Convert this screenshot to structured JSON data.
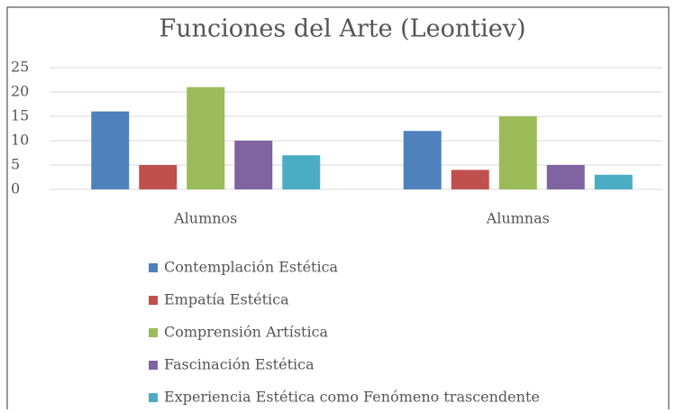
{
  "chart_data": {
    "type": "bar",
    "title": "Funciones del Arte (Leontiev)",
    "categories": [
      "Alumnos",
      "Alumnas"
    ],
    "series": [
      {
        "name": "Contemplación Estética",
        "color": "#4f81bd",
        "values": [
          16,
          12
        ]
      },
      {
        "name": "Empatía Estética",
        "color": "#c0504d",
        "values": [
          5,
          4
        ]
      },
      {
        "name": "Comprensión Artística",
        "color": "#9bbb59",
        "values": [
          21,
          15
        ]
      },
      {
        "name": "Fascinación Estética",
        "color": "#8064a2",
        "values": [
          10,
          5
        ]
      },
      {
        "name": "Experiencia Estética como Fenómeno trascendente",
        "color": "#4bacc6",
        "values": [
          7,
          3
        ]
      }
    ],
    "ylim": [
      0,
      25
    ],
    "yticks": [
      0,
      5,
      10,
      15,
      20,
      25
    ],
    "grid": true
  }
}
